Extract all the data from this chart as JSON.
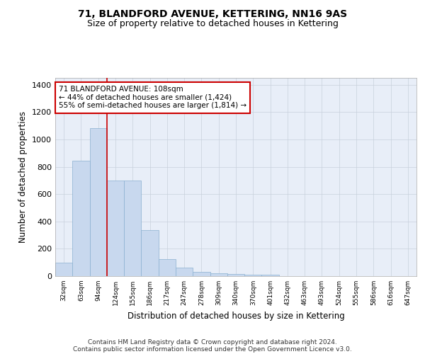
{
  "title": "71, BLANDFORD AVENUE, KETTERING, NN16 9AS",
  "subtitle": "Size of property relative to detached houses in Kettering",
  "xlabel": "Distribution of detached houses by size in Kettering",
  "ylabel": "Number of detached properties",
  "categories": [
    "32sqm",
    "63sqm",
    "94sqm",
    "124sqm",
    "155sqm",
    "186sqm",
    "217sqm",
    "247sqm",
    "278sqm",
    "309sqm",
    "340sqm",
    "370sqm",
    "401sqm",
    "432sqm",
    "463sqm",
    "493sqm",
    "524sqm",
    "555sqm",
    "586sqm",
    "616sqm",
    "647sqm"
  ],
  "values": [
    100,
    843,
    1082,
    697,
    697,
    335,
    125,
    60,
    30,
    20,
    17,
    10,
    12,
    0,
    0,
    0,
    0,
    0,
    0,
    0,
    0
  ],
  "bar_color": "#c8d8ee",
  "bar_edge_color": "#8ab0d0",
  "grid_color": "#c8d0dc",
  "bg_color": "#e8eef8",
  "vline_color": "#cc0000",
  "annotation_text": "71 BLANDFORD AVENUE: 108sqm\n← 44% of detached houses are smaller (1,424)\n55% of semi-detached houses are larger (1,814) →",
  "annotation_box_color": "#cc0000",
  "ylim": [
    0,
    1450
  ],
  "yticks": [
    0,
    200,
    400,
    600,
    800,
    1000,
    1200,
    1400
  ],
  "footer_line1": "Contains HM Land Registry data © Crown copyright and database right 2024.",
  "footer_line2": "Contains public sector information licensed under the Open Government Licence v3.0.",
  "title_fontsize": 10,
  "subtitle_fontsize": 9
}
